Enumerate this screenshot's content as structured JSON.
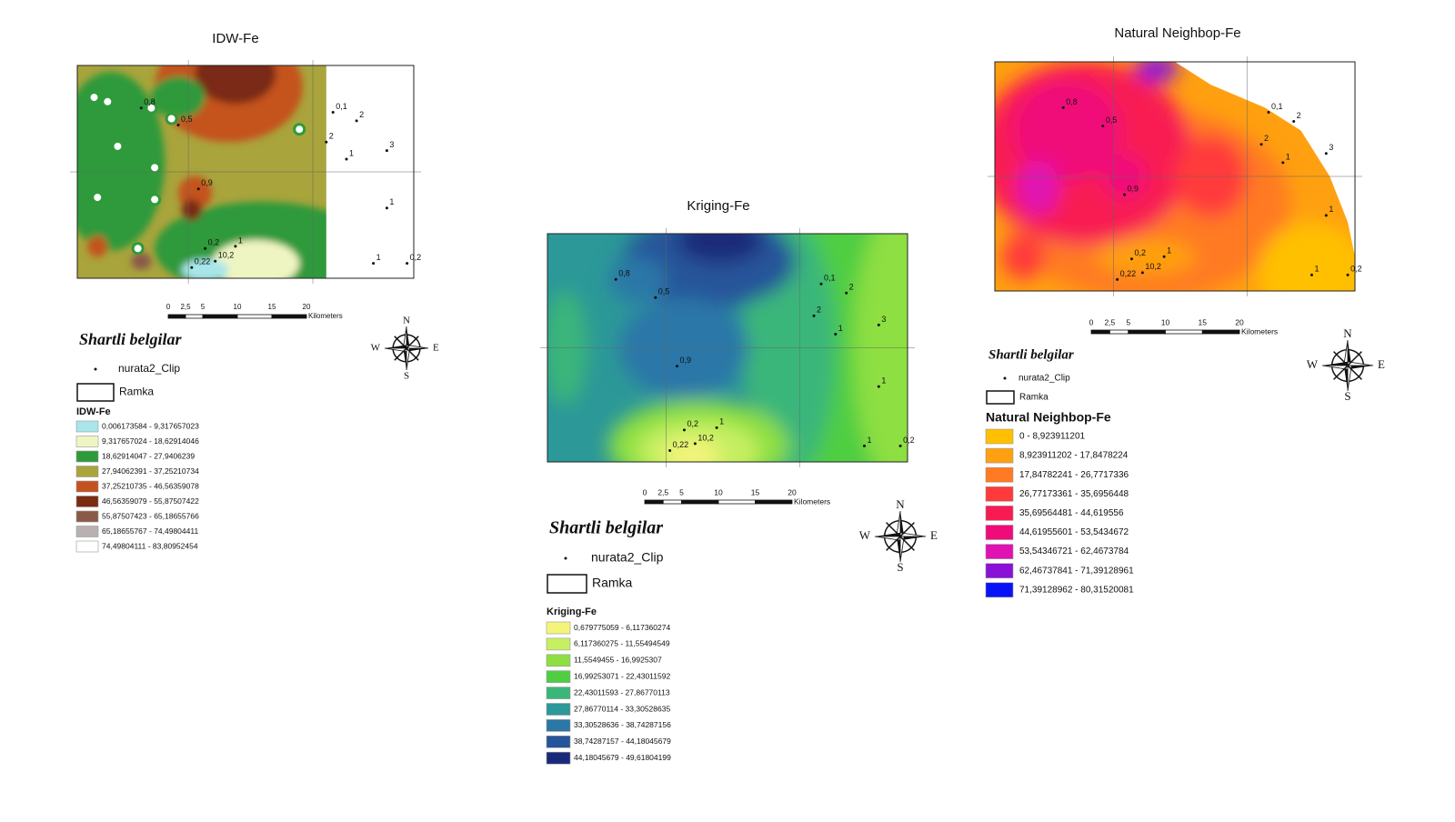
{
  "sample_labels": [
    "0,1",
    "2",
    "2",
    "3",
    "1",
    "1",
    "1",
    "0,2",
    "0,2",
    "10,2",
    "0,22",
    "1",
    "0,9",
    "0,5",
    "0,8"
  ],
  "panels": [
    {
      "title": "IDW-Fe",
      "scale_ticks": [
        "0",
        "2,5",
        "5",
        "10",
        "15",
        "20"
      ],
      "scale_unit": "Kilometers",
      "compass": {
        "n": "N",
        "e": "E",
        "s": "S",
        "w": "W"
      },
      "legend": {
        "title": "Shartli belgilar",
        "items": [
          "nurata2_Clip",
          "Ramka"
        ],
        "layer": "IDW-Fe",
        "classes": [
          {
            "label": "0,006173584 - 9,317657023",
            "color": "#a8e6ea"
          },
          {
            "label": "9,317657024 - 18,62914046",
            "color": "#eff5c2"
          },
          {
            "label": "18,62914047 - 27,9406239",
            "color": "#2f9a3a"
          },
          {
            "label": "27,94062391 - 37,25210734",
            "color": "#a9a43c"
          },
          {
            "label": "37,25210735 - 46,56359078",
            "color": "#c4521f"
          },
          {
            "label": "46,56359079 - 55,87507422",
            "color": "#7a2b12"
          },
          {
            "label": "55,87507423 - 65,18655766",
            "color": "#8a5a48"
          },
          {
            "label": "65,18655767 - 74,49804411",
            "color": "#b9b1b1"
          },
          {
            "label": "74,49804111 - 83,80952454",
            "color": "#ffffff"
          }
        ]
      }
    },
    {
      "title": "Kriging-Fe",
      "scale_ticks": [
        "0",
        "2,5",
        "5",
        "10",
        "15",
        "20"
      ],
      "scale_unit": "Kilometers",
      "compass": {
        "n": "N",
        "e": "E",
        "s": "S",
        "w": "W"
      },
      "legend": {
        "title": "Shartli belgilar",
        "items": [
          "nurata2_Clip",
          "Ramka"
        ],
        "layer": "Kriging-Fe",
        "classes": [
          {
            "label": "0,679775059 - 6,117360274",
            "color": "#f4f47a"
          },
          {
            "label": "6,117360275 - 11,55494549",
            "color": "#c6ef62"
          },
          {
            "label": "11,5549455 - 16,9925307",
            "color": "#8ddf42"
          },
          {
            "label": "16,99253071 - 22,43011592",
            "color": "#4fce42"
          },
          {
            "label": "22,43011593 - 27,86770113",
            "color": "#3ab67a"
          },
          {
            "label": "27,86770114 - 33,30528635",
            "color": "#2c9898"
          },
          {
            "label": "33,30528636 - 38,74287156",
            "color": "#2a77a8"
          },
          {
            "label": "38,74287157 - 44,18045679",
            "color": "#25559a"
          },
          {
            "label": "44,18045679 - 49,61804199",
            "color": "#1a2a7a"
          }
        ]
      }
    },
    {
      "title": "Natural Neighbop-Fe",
      "scale_ticks": [
        "0",
        "2,5",
        "5",
        "10",
        "15",
        "20"
      ],
      "scale_unit": "Kilometers",
      "compass": {
        "n": "N",
        "e": "E",
        "s": "S",
        "w": "W"
      },
      "legend": {
        "title": "Shartli belgilar",
        "items": [
          "nurata2_Clip",
          "Ramka"
        ],
        "layer": "Natural Neighbop-Fe",
        "classes": [
          {
            "label": "0 - 8,923911201",
            "color": "#ffc000"
          },
          {
            "label": "8,923911202 - 17,8478224",
            "color": "#ffa010"
          },
          {
            "label": "17,84782241 - 26,7717336",
            "color": "#ff7a22"
          },
          {
            "label": "26,77173361 - 35,6956448",
            "color": "#ff3a3a"
          },
          {
            "label": "35,69564481 - 44,619556",
            "color": "#f81a52"
          },
          {
            "label": "44,61955601 - 53,5434672",
            "color": "#f00a7a"
          },
          {
            "label": "53,54346721 - 62,4673784",
            "color": "#e012b2"
          },
          {
            "label": "62,46737841 - 71,39128961",
            "color": "#8a12d8"
          },
          {
            "label": "71,39128962 - 80,31520081",
            "color": "#0a12f8"
          }
        ]
      }
    }
  ]
}
